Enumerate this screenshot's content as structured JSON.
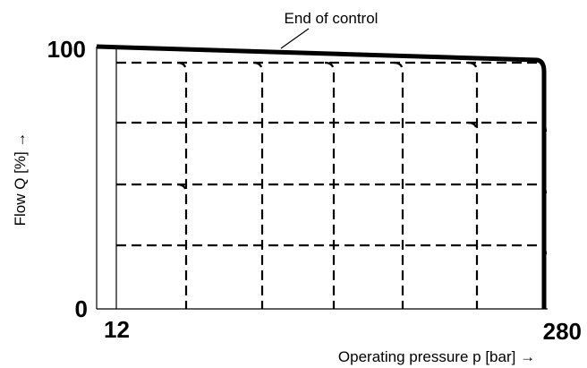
{
  "annotation": "End of control",
  "y_axis": {
    "label": "Flow Q [%] →",
    "max_label": "100",
    "min_label": "0"
  },
  "x_axis": {
    "label": "Operating pressure p [bar] →",
    "min_label": "12",
    "max_label": "280"
  }
}
